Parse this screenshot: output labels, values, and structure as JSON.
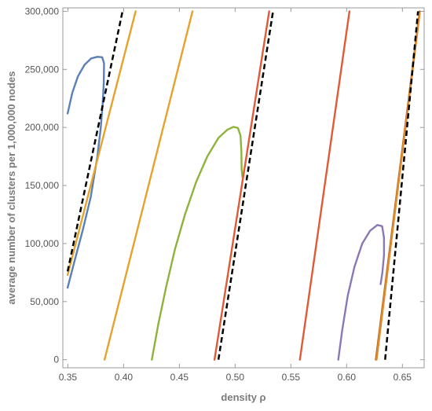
{
  "chart_data": {
    "type": "line",
    "title": "",
    "xlabel": "density ρ",
    "ylabel": "average number of clusters per 1,000,000 nodes",
    "xlim": [
      0.3455,
      0.6695
    ],
    "ylim": [
      -7000,
      303000
    ],
    "grid": false,
    "legend": "none",
    "x_ticks": [
      0.35,
      0.4,
      0.45,
      0.5,
      0.55,
      0.6,
      0.65
    ],
    "x_tick_labels": [
      "0.35",
      "0.40",
      "0.45",
      "0.50",
      "0.55",
      "0.60",
      "0.65"
    ],
    "y_ticks": [
      0,
      50000,
      100000,
      150000,
      200000,
      250000,
      300000
    ],
    "y_tick_labels": [
      "0",
      "50,000",
      "100,000",
      "150,000",
      "200,000",
      "250,000",
      "300,000"
    ],
    "series": [
      {
        "color": "#5b80b8",
        "dashed": false,
        "points": [
          [
            0.3498,
            212000
          ],
          [
            0.354,
            230000
          ],
          [
            0.359,
            244000
          ],
          [
            0.365,
            254000
          ],
          [
            0.371,
            259500
          ],
          [
            0.3765,
            260800
          ],
          [
            0.3808,
            260500
          ],
          [
            0.3825,
            255000
          ],
          [
            0.3822,
            238000
          ],
          [
            0.3812,
            220000
          ],
          [
            0.3795,
            200000
          ],
          [
            0.3765,
            175000
          ],
          [
            0.3705,
            140000
          ],
          [
            0.363,
            110000
          ],
          [
            0.356,
            85000
          ],
          [
            0.3498,
            62000
          ]
        ]
      },
      {
        "color": "#e5a32e",
        "dashed": false,
        "points": [
          [
            0.3498,
            73000
          ],
          [
            0.4108,
            300000
          ]
        ]
      },
      {
        "color": "#e5a32e",
        "dashed": false,
        "points": [
          [
            0.3829,
            0
          ],
          [
            0.4618,
            300000
          ]
        ]
      },
      {
        "color": "#8db33a",
        "dashed": false,
        "points": [
          [
            0.4253,
            0
          ],
          [
            0.431,
            30000
          ],
          [
            0.438,
            62000
          ],
          [
            0.446,
            95000
          ],
          [
            0.455,
            125000
          ],
          [
            0.465,
            153000
          ],
          [
            0.475,
            175000
          ],
          [
            0.485,
            191000
          ],
          [
            0.493,
            198000
          ],
          [
            0.4985,
            200500
          ],
          [
            0.5025,
            199500
          ],
          [
            0.5048,
            193000
          ],
          [
            0.5056,
            180000
          ],
          [
            0.5058,
            165000
          ],
          [
            0.5065,
            157500
          ]
        ]
      },
      {
        "color": "#e05a38",
        "dashed": false,
        "points": [
          [
            0.4815,
            0
          ],
          [
            0.5305,
            300000
          ]
        ]
      },
      {
        "color": "#e05a38",
        "dashed": false,
        "points": [
          [
            0.5581,
            0
          ],
          [
            0.6025,
            300000
          ]
        ]
      },
      {
        "color": "#8a78b4",
        "dashed": false,
        "points": [
          [
            0.5925,
            0
          ],
          [
            0.596,
            25000
          ],
          [
            0.601,
            55000
          ],
          [
            0.607,
            80000
          ],
          [
            0.614,
            100000
          ],
          [
            0.621,
            111000
          ],
          [
            0.6275,
            116000
          ],
          [
            0.6318,
            115000
          ],
          [
            0.6335,
            105000
          ],
          [
            0.6335,
            90000
          ],
          [
            0.632,
            75000
          ],
          [
            0.6305,
            65000
          ]
        ]
      },
      {
        "color": "#b86a1e",
        "dashed": false,
        "points": [
          [
            0.6262,
            0
          ],
          [
            0.6655,
            300000
          ]
        ]
      },
      {
        "color": "#e08a2e",
        "dashed": false,
        "points": [
          [
            0.6268,
            0
          ],
          [
            0.6655,
            298000
          ]
        ]
      },
      {
        "color": "#000000",
        "dashed": true,
        "points": [
          [
            0.3498,
            76000
          ],
          [
            0.399,
            300000
          ]
        ]
      },
      {
        "color": "#000000",
        "dashed": true,
        "points": [
          [
            0.485,
            0
          ],
          [
            0.534,
            300000
          ]
        ]
      },
      {
        "color": "#000000",
        "dashed": true,
        "points": [
          [
            0.6345,
            0
          ],
          [
            0.664,
            300000
          ]
        ]
      }
    ]
  }
}
